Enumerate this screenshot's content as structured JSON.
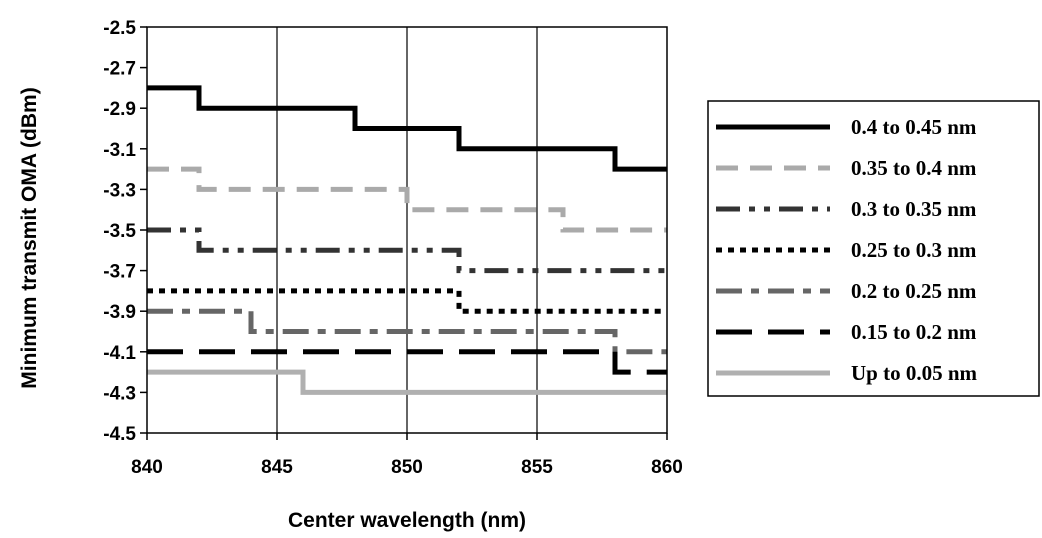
{
  "chart_data": {
    "type": "line",
    "title": "",
    "xlabel": "Center wavelength (nm)",
    "ylabel": "Minimum transmit OMA (dBm)",
    "xlim": [
      840,
      860
    ],
    "ylim": [
      -4.5,
      -2.5
    ],
    "xticks": [
      840,
      845,
      850,
      855,
      860
    ],
    "xtick_labels": [
      "840",
      "845",
      "850",
      "855",
      "860"
    ],
    "yticks": [
      -2.5,
      -2.7,
      -2.9,
      -3.1,
      -3.3,
      -3.5,
      -3.7,
      -3.9,
      -4.1,
      -4.3,
      -4.5
    ],
    "ytick_labels": [
      "-2.5",
      "-2.7",
      "-2.9",
      "-3.1",
      "-3.3",
      "-3.5",
      "-3.7",
      "-3.9",
      "-4.1",
      "-4.3",
      "-4.5"
    ],
    "grid": "vertical",
    "legend_position": "right",
    "step": true,
    "series": [
      {
        "name": "0.4 to 0.45 nm",
        "color": "#000000",
        "style": "solid",
        "x": [
          840,
          842,
          848,
          852,
          858,
          860
        ],
        "y": [
          -2.8,
          -2.9,
          -3.0,
          -3.1,
          -3.2,
          -3.2
        ]
      },
      {
        "name": "0.35 to 0.4 nm",
        "color": "#aaaaaa",
        "style": "dash",
        "x": [
          840,
          842,
          850,
          856,
          860
        ],
        "y": [
          -3.2,
          -3.3,
          -3.4,
          -3.5,
          -3.5
        ]
      },
      {
        "name": "0.3 to 0.35 nm",
        "color": "#333333",
        "style": "dash-dot-dot",
        "x": [
          840,
          842,
          852,
          860
        ],
        "y": [
          -3.5,
          -3.6,
          -3.7,
          -3.7
        ]
      },
      {
        "name": "0.25 to 0.3 nm",
        "color": "#000000",
        "style": "dot",
        "x": [
          840,
          852,
          860
        ],
        "y": [
          -3.8,
          -3.9,
          -3.9
        ]
      },
      {
        "name": "0.2 to 0.25 nm",
        "color": "#666666",
        "style": "dash-dot",
        "x": [
          840,
          844,
          858,
          860
        ],
        "y": [
          -3.9,
          -4.0,
          -4.1,
          -4.1
        ]
      },
      {
        "name": "0.15 to 0.2 nm",
        "color": "#000000",
        "style": "long-dash",
        "x": [
          840,
          858,
          860
        ],
        "y": [
          -4.1,
          -4.2,
          -4.2
        ]
      },
      {
        "name": "Up to 0.05 nm",
        "color": "#b0b0b0",
        "style": "solid",
        "x": [
          840,
          846,
          860
        ],
        "y": [
          -4.2,
          -4.3,
          -4.3
        ]
      }
    ]
  }
}
